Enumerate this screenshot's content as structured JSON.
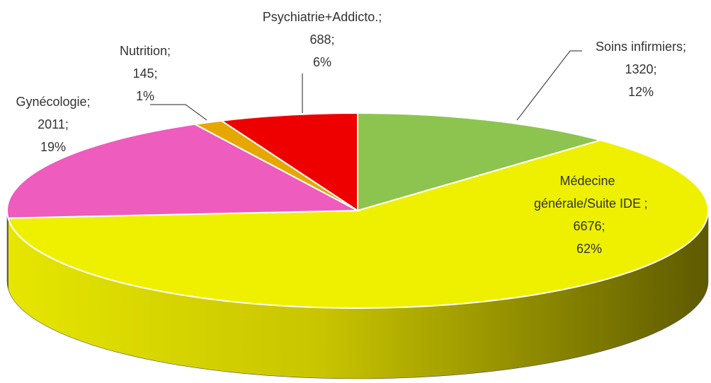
{
  "chart_data": {
    "type": "pie3d",
    "categories": [
      "Soins infirmiers",
      "Médecine générale/Suite IDE",
      "Gynécologie",
      "Nutrition",
      "Psychiatrie+Addicto."
    ],
    "values": [
      1320,
      6676,
      2011,
      145,
      688
    ],
    "percent_labels": [
      "12%",
      "62%",
      "19%",
      "1%",
      "6%"
    ],
    "label_separator": ";",
    "colors": [
      "#8dc450",
      "#eef000",
      "#ee5cbd",
      "#e6a800",
      "#ee0000"
    ]
  }
}
